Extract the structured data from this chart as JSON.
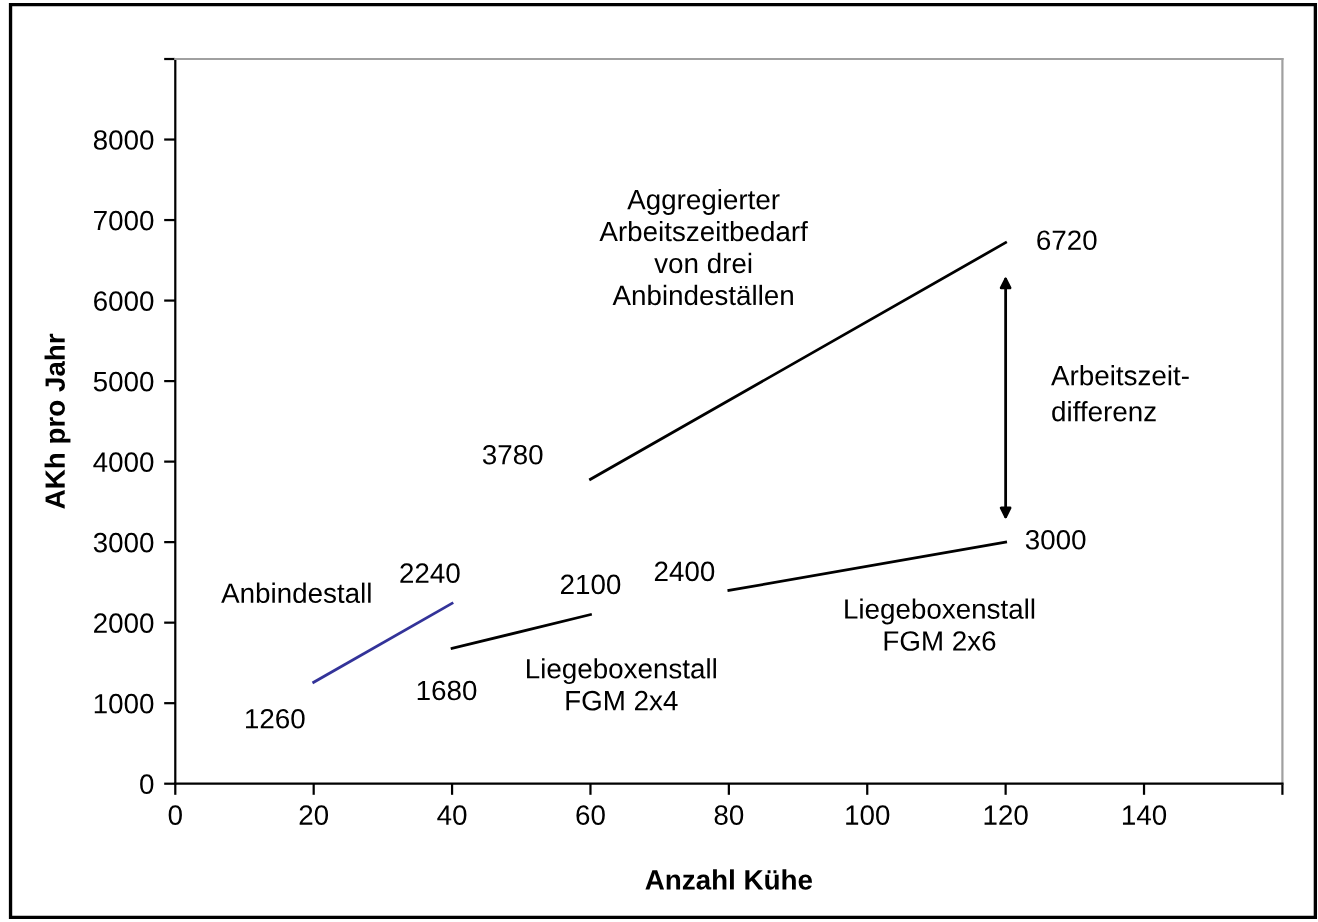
{
  "chart_data": {
    "type": "line",
    "xlabel": "Anzahl Kühe",
    "ylabel": "AKh pro Jahr",
    "series": [
      {
        "name": "Anbindestall",
        "color": "#333399",
        "x": [
          20,
          40
        ],
        "values": [
          1260,
          2240
        ]
      },
      {
        "name": "Liegeboxenstall\nFGM 2x4",
        "color": "#000000",
        "x": [
          40,
          60
        ],
        "values": [
          1680,
          2100
        ]
      },
      {
        "name": "Liegeboxenstall\nFGM 2x6",
        "color": "#000000",
        "x": [
          80,
          120
        ],
        "values": [
          2400,
          3000
        ]
      },
      {
        "name": "Aggregierter\nArbeitszeitbedarf\nvon drei\nAnbindeställen",
        "color": "#000000",
        "x": [
          60,
          120
        ],
        "values": [
          3780,
          6720
        ]
      }
    ],
    "xlim": [
      0,
      160
    ],
    "xticks": [
      0,
      20,
      40,
      60,
      80,
      100,
      120,
      140,
      {
        "value": 160,
        "label": null
      }
    ],
    "ylim": [
      0,
      9000
    ],
    "yticks": [
      0,
      1000,
      2000,
      3000,
      4000,
      5000,
      6000,
      7000,
      8000,
      {
        "value": 9000,
        "label": null
      }
    ],
    "data_labels": true,
    "grid": false,
    "legend": false,
    "marker": "none",
    "line_style": "solid",
    "annotations": [
      "Arbeitszeit-\ndifferenz"
    ]
  }
}
